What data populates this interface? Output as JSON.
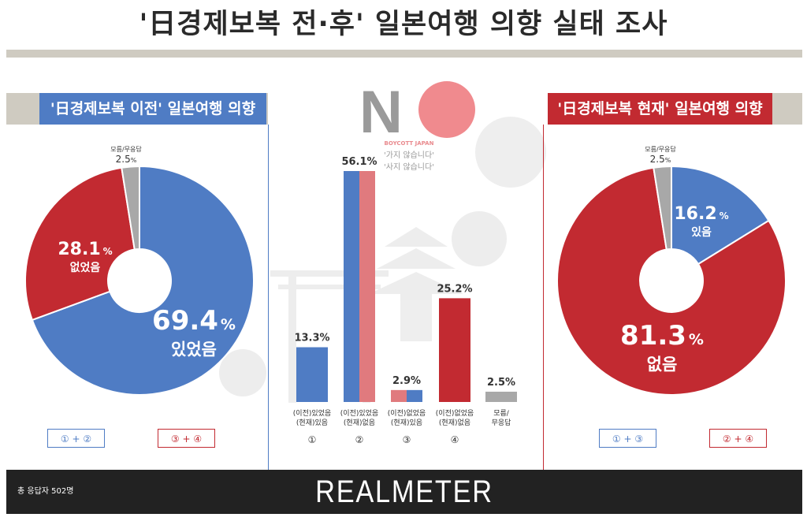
{
  "title": "'日경제보복 전·후' 일본여행 의향 실태 조사",
  "left_panel": {
    "title": "'日경제보복 이전' 일본여행 의향",
    "legend_1": "① + ②",
    "legend_2": "③ + ④"
  },
  "right_panel": {
    "title": "'日경제보복 현재' 일본여행 의향",
    "legend_1": "① + ③",
    "legend_2": "② + ④"
  },
  "boycott": {
    "logo_text": "NO",
    "caption": "BOYCOTT JAPAN",
    "line1": "'가지 않습니다'",
    "line2": "'사지 않습니다'"
  },
  "footer": {
    "note": "총 응답자 502명",
    "brand": "REALMETER"
  },
  "colors": {
    "blue": "#4f7cc4",
    "red": "#c22a31",
    "light_red": "#e07a7e",
    "gray": "#a8a8a8"
  },
  "chart_data": [
    {
      "type": "pie",
      "title": "'日경제보복 이전' 일본여행 의향",
      "slices": [
        {
          "label": "있었음",
          "value": 69.4,
          "display": "69.4",
          "color": "#4f7cc4"
        },
        {
          "label": "없었음",
          "value": 28.1,
          "display": "28.1",
          "color": "#c22a31"
        },
        {
          "label": "모름/무응답",
          "value": 2.5,
          "display": "2.5",
          "color": "#a8a8a8"
        }
      ],
      "unit": "%"
    },
    {
      "type": "bar",
      "categories": [
        {
          "line1": "(이전)있었음",
          "line2": "(현재)있음",
          "num": "①"
        },
        {
          "line1": "(이전)있었음",
          "line2": "(현재)없음",
          "num": "②"
        },
        {
          "line1": "(이전)없었음",
          "line2": "(현재)있음",
          "num": "③"
        },
        {
          "line1": "(이전)없었음",
          "line2": "(현재)없음",
          "num": "④"
        },
        {
          "line1": "모름/",
          "line2": "무응답",
          "num": ""
        }
      ],
      "values": [
        13.3,
        56.1,
        2.9,
        25.2,
        2.5
      ],
      "labels": [
        "13.3%",
        "56.1%",
        "2.9%",
        "25.2%",
        "2.5%"
      ],
      "ylim": [
        0,
        60
      ]
    },
    {
      "type": "pie",
      "title": "'日경제보복 현재' 일본여행 의향",
      "slices": [
        {
          "label": "있음",
          "value": 16.2,
          "display": "16.2",
          "color": "#4f7cc4"
        },
        {
          "label": "없음",
          "value": 81.3,
          "display": "81.3",
          "color": "#c22a31"
        },
        {
          "label": "모름/무응답",
          "value": 2.5,
          "display": "2.5",
          "color": "#a8a8a8"
        }
      ],
      "unit": "%"
    }
  ]
}
